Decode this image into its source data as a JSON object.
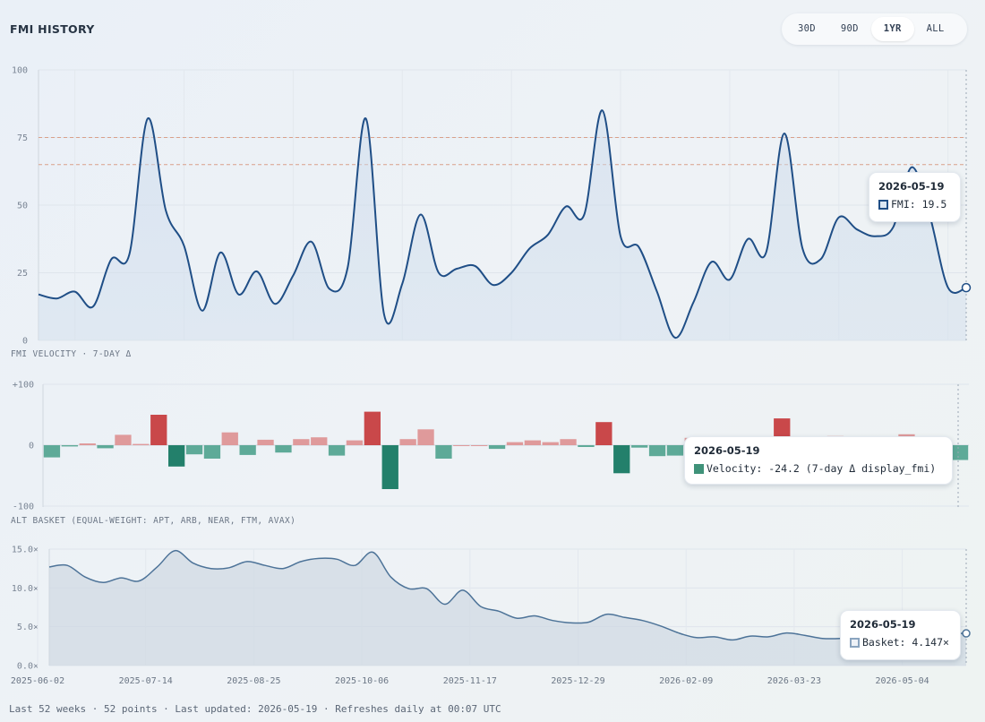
{
  "header": {
    "title": "FMI HISTORY",
    "ranges": [
      "30D",
      "90D",
      "1YR",
      "ALL"
    ],
    "active_range": "1YR"
  },
  "colors": {
    "fmi_line": "#1f4e86",
    "fmi_fill": "#c7d7ea",
    "threshold": "#d9a08a",
    "pos_strong": "#c9484a",
    "pos_light": "#df9a9b",
    "neg_strong": "#23806b",
    "neg_light": "#5eaa98",
    "basket_line": "#4d7398",
    "basket_fill": "#cfd8e3"
  },
  "chart_data": [
    {
      "type": "line",
      "series": [
        {
          "name": "FMI",
          "values": [
            17,
            15.5,
            18,
            12.5,
            30,
            32,
            82,
            48,
            35,
            11,
            32.5,
            17,
            25.5,
            13.5,
            24,
            36.5,
            19,
            27,
            82,
            9.5,
            21,
            46.5,
            25,
            26.5,
            27.5,
            20.5,
            25,
            34,
            39,
            49.5,
            46.5,
            85,
            38.5,
            34.5,
            18,
            1,
            14,
            29,
            22.5,
            37.5,
            32.5,
            76.5,
            34,
            30,
            45.5,
            41,
            38.5,
            42,
            64,
            46,
            19.5,
            19.5
          ]
        }
      ],
      "ylim": [
        0,
        100
      ],
      "yticks": [
        "0",
        "25",
        "50",
        "75",
        "100"
      ],
      "thresholds": [
        75,
        65
      ]
    },
    {
      "type": "bar",
      "label": "FMI VELOCITY · 7-DAY Δ",
      "series": [
        {
          "name": "Velocity",
          "values": [
            -20,
            -2,
            3,
            -5,
            17,
            2,
            50,
            -35,
            -15,
            -22,
            21,
            -16,
            9,
            -12,
            10,
            13,
            -17,
            8,
            55,
            -72,
            10,
            26,
            -22,
            0,
            0,
            -6,
            5,
            8,
            5,
            10,
            -3,
            38,
            -46,
            -4,
            -18,
            -17,
            12,
            -7,
            10,
            5,
            -15,
            44,
            -25,
            -5,
            15,
            -5,
            -8,
            7,
            18,
            -24,
            -16,
            -24.2
          ]
        }
      ],
      "ylim": [
        -100,
        100
      ],
      "yticks": [
        "-100",
        "0",
        "+100"
      ]
    },
    {
      "type": "area",
      "label": "ALT BASKET (EQUAL-WEIGHT: APT, ARB, NEAR, FTM, AVAX)",
      "series": [
        {
          "name": "Basket",
          "values": [
            12.7,
            12.9,
            11.4,
            10.7,
            11.3,
            10.9,
            12.7,
            14.8,
            13.2,
            12.5,
            12.6,
            13.4,
            12.9,
            12.5,
            13.4,
            13.8,
            13.7,
            12.9,
            14.6,
            11.4,
            9.9,
            9.9,
            7.9,
            9.7,
            7.6,
            7.0,
            6.1,
            6.4,
            5.8,
            5.5,
            5.6,
            6.6,
            6.2,
            5.8,
            5.1,
            4.2,
            3.6,
            3.7,
            3.3,
            3.8,
            3.7,
            4.2,
            3.9,
            3.5,
            3.5,
            3.7,
            3.8,
            4.0,
            4.2,
            4.1,
            4.147,
            4.147
          ]
        }
      ],
      "ylim": [
        0,
        15
      ],
      "yticks": [
        "0.0×",
        "5.0×",
        "10.0×",
        "15.0×"
      ],
      "x_ticks": [
        "2025-06-02",
        "2025-07-14",
        "2025-08-25",
        "2025-10-06",
        "2025-11-17",
        "2025-12-29",
        "2026-02-09",
        "2026-03-23",
        "2026-05-04"
      ]
    }
  ],
  "tooltips": {
    "fmi": {
      "date": "2026-05-19",
      "text": "FMI: 19.5"
    },
    "velocity": {
      "date": "2026-05-19",
      "text": "Velocity: -24.2 (7-day Δ display_fmi)"
    },
    "basket": {
      "date": "2026-05-19",
      "text": "Basket: 4.147×"
    }
  },
  "labels": {
    "velocity": "FMI VELOCITY · 7-DAY Δ",
    "basket": "ALT BASKET (EQUAL-WEIGHT: APT, ARB, NEAR, FTM, AVAX)"
  },
  "footer": {
    "text": "Last 52 weeks · 52 points · Last updated: 2026-05-19 · Refreshes daily at 00:07 UTC"
  }
}
